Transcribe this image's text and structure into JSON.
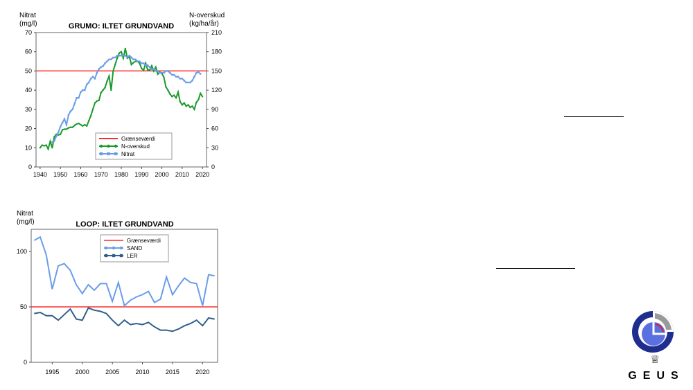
{
  "chart_data": [
    {
      "type": "line",
      "title": "GRUMO: ILTET GRUNDVAND",
      "ylabel_left": [
        "Nitrat",
        "(mg/l)"
      ],
      "ylabel_right": [
        "N-overskud",
        "(kg/ha/år)"
      ],
      "xlim": [
        1938,
        2022
      ],
      "ylim_left": [
        0,
        70
      ],
      "ylim_right": [
        0,
        210
      ],
      "xticks": [
        1940,
        1950,
        1960,
        1970,
        1980,
        1990,
        2000,
        2010,
        2020
      ],
      "yticks_left": [
        0,
        10,
        20,
        30,
        40,
        50,
        60,
        70
      ],
      "yticks_right": [
        0,
        30,
        60,
        90,
        120,
        150,
        180,
        210
      ],
      "legend_position": "bottom-center",
      "series": [
        {
          "name": "Grænseværdi",
          "axis": "left",
          "color": "#ff2a2a",
          "marker": "none",
          "x": [
            1938,
            2022
          ],
          "y": [
            50,
            50
          ]
        },
        {
          "name": "N-overskud",
          "axis": "right",
          "color": "#1a9a2a",
          "marker": "circle",
          "x": [
            1940,
            1941,
            1942,
            1943,
            1944,
            1945,
            1946,
            1947,
            1948,
            1949,
            1950,
            1951,
            1952,
            1953,
            1954,
            1955,
            1956,
            1957,
            1958,
            1959,
            1960,
            1961,
            1962,
            1963,
            1964,
            1965,
            1966,
            1967,
            1968,
            1969,
            1970,
            1971,
            1972,
            1973,
            1974,
            1975,
            1976,
            1977,
            1978,
            1979,
            1980,
            1981,
            1982,
            1983,
            1984,
            1985,
            1986,
            1987,
            1988,
            1989,
            1990,
            1991,
            1992,
            1993,
            1994,
            1995,
            1996,
            1997,
            1998,
            1999,
            2000,
            2001,
            2002,
            2003,
            2004,
            2005,
            2006,
            2007,
            2008,
            2009,
            2010,
            2011,
            2012,
            2013,
            2014,
            2015,
            2016,
            2017,
            2018,
            2019,
            2020
          ],
          "y": [
            30,
            34,
            33,
            34,
            28,
            40,
            30,
            47,
            51,
            50,
            51,
            58,
            59,
            59,
            61,
            62,
            62,
            65,
            67,
            68,
            66,
            64,
            66,
            64,
            72,
            80,
            90,
            100,
            103,
            104,
            116,
            120,
            124,
            134,
            142,
            120,
            150,
            160,
            170,
            178,
            180,
            170,
            185,
            170,
            172,
            160,
            163,
            165,
            165,
            162,
            154,
            151,
            162,
            152,
            151,
            158,
            150,
            156,
            145,
            148,
            146,
            140,
            125,
            120,
            114,
            110,
            112,
            108,
            117,
            102,
            97,
            100,
            95,
            97,
            93,
            95,
            90,
            101,
            105,
            115,
            110
          ]
        },
        {
          "name": "Nitrat",
          "axis": "left",
          "color": "#6a9de8",
          "marker": "square",
          "x": [
            1946,
            1947,
            1948,
            1949,
            1950,
            1951,
            1952,
            1953,
            1954,
            1955,
            1956,
            1957,
            1958,
            1959,
            1960,
            1961,
            1962,
            1963,
            1964,
            1965,
            1966,
            1967,
            1968,
            1969,
            1970,
            1971,
            1972,
            1973,
            1974,
            1975,
            1976,
            1977,
            1978,
            1979,
            1980,
            1981,
            1982,
            1983,
            1984,
            1985,
            1986,
            1987,
            1988,
            1989,
            1990,
            1991,
            1992,
            1993,
            1994,
            1995,
            1996,
            1997,
            1998,
            1999,
            2000,
            2001,
            2002,
            2003,
            2004,
            2005,
            2006,
            2007,
            2008,
            2009,
            2010,
            2011,
            2012,
            2013,
            2014,
            2015,
            2016,
            2017,
            2018,
            2019
          ],
          "y": [
            13,
            13.5,
            16,
            18,
            21,
            23,
            25,
            22,
            27,
            29,
            30,
            33,
            36,
            36,
            39,
            40,
            40,
            43,
            44,
            46,
            47,
            46,
            49,
            51,
            52,
            52.5,
            54,
            55,
            56,
            56,
            57,
            57,
            58,
            58,
            58,
            58,
            58,
            57,
            58,
            57,
            56,
            56,
            55,
            55,
            54,
            54,
            53,
            53,
            52,
            51,
            51,
            50,
            50,
            49,
            49,
            49,
            50,
            50,
            49,
            48,
            48,
            47,
            47,
            46,
            46,
            45,
            44,
            44,
            44,
            45,
            47,
            49,
            49.5,
            48.5
          ]
        }
      ]
    },
    {
      "type": "line",
      "title": "LOOP: ILTET GRUNDVAND",
      "ylabel_left": [
        "Nitrat",
        "(mg/l)"
      ],
      "xlim": [
        1991.5,
        2022.5
      ],
      "ylim": [
        0,
        120
      ],
      "xticks": [
        1995,
        2000,
        2005,
        2010,
        2015,
        2020
      ],
      "yticks": [
        0,
        50,
        100
      ],
      "legend_position": "top-center",
      "series": [
        {
          "name": "Grænseværdi",
          "color": "#ff2a2a",
          "marker": "none",
          "x": [
            1991.5,
            2022.5
          ],
          "y": [
            50,
            50
          ]
        },
        {
          "name": "SAND",
          "color": "#6a9de8",
          "marker": "circle",
          "x": [
            1992,
            1993,
            1994,
            1995,
            1996,
            1997,
            1998,
            1999,
            2000,
            2001,
            2002,
            2003,
            2004,
            2005,
            2006,
            2007,
            2008,
            2009,
            2010,
            2011,
            2012,
            2013,
            2014,
            2015,
            2016,
            2017,
            2018,
            2019,
            2020,
            2021,
            2022
          ],
          "y": [
            110,
            113,
            97,
            66,
            87,
            89,
            83,
            70,
            62,
            70,
            65,
            71,
            71,
            55,
            72,
            51,
            56,
            59,
            61,
            64,
            54,
            57,
            77,
            61,
            69,
            76,
            72,
            71,
            51,
            79,
            78
          ]
        },
        {
          "name": "LER",
          "color": "#2f5f8a",
          "marker": "square",
          "x": [
            1992,
            1993,
            1994,
            1995,
            1996,
            1997,
            1998,
            1999,
            2000,
            2001,
            2002,
            2003,
            2004,
            2005,
            2006,
            2007,
            2008,
            2009,
            2010,
            2011,
            2012,
            2013,
            2014,
            2015,
            2016,
            2017,
            2018,
            2019,
            2020,
            2021,
            2022
          ],
          "y": [
            44,
            45,
            42,
            42,
            38,
            43,
            48,
            39,
            38,
            49,
            47,
            46,
            44,
            38,
            33,
            38,
            34,
            35,
            34,
            36,
            32,
            29,
            29,
            28,
            30,
            33,
            35,
            38,
            33,
            40,
            39
          ]
        }
      ]
    }
  ],
  "logo": {
    "word": "GEUS",
    "icon": "geus-logo-icon",
    "crown_icon": "crown-icon",
    "colors": [
      "#1f2d8f",
      "#5a6fe0",
      "#9a9a9a",
      "#e02020"
    ]
  }
}
